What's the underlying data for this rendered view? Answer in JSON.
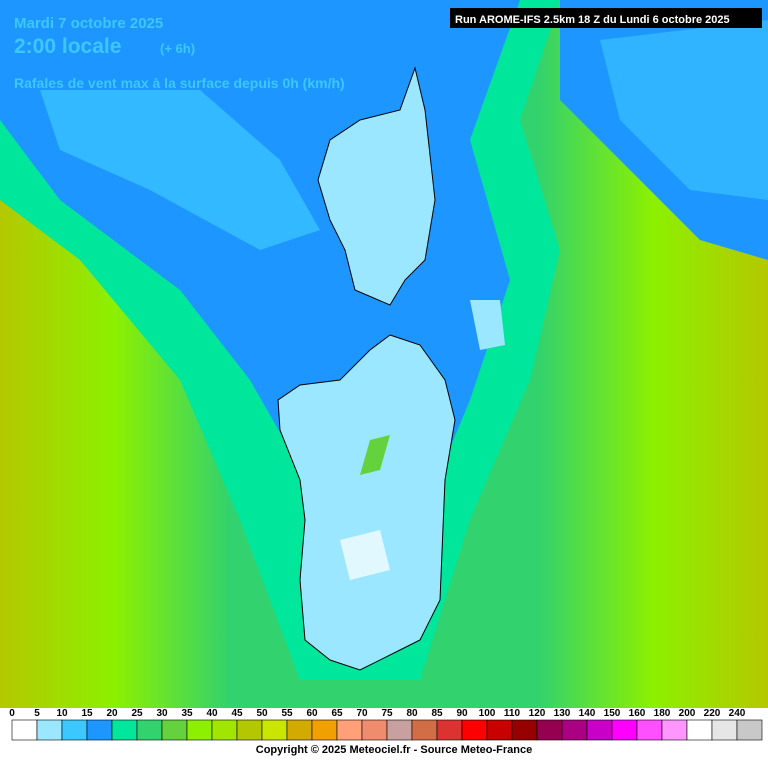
{
  "header": {
    "date": "Mardi 7 octobre 2025",
    "time": "2:00 locale",
    "offset": "(+ 6h)",
    "title": "Rafales de vent max à la surface depuis 0h (km/h)",
    "run": "Run AROME-IFS 2.5km 18 Z du Lundi 6 octobre 2025"
  },
  "legend": {
    "labels": [
      0,
      5,
      10,
      15,
      20,
      25,
      30,
      35,
      40,
      45,
      50,
      55,
      60,
      65,
      70,
      75,
      80,
      85,
      90,
      100,
      110,
      120,
      130,
      140,
      150,
      160,
      180,
      200,
      220,
      240
    ],
    "colors": [
      "#ffffff",
      "#9be7ff",
      "#3cc8ff",
      "#1e96ff",
      "#00e69b",
      "#32d26e",
      "#64d23c",
      "#8cf000",
      "#a0e600",
      "#b4c800",
      "#c8e600",
      "#d2aa00",
      "#f0a000",
      "#ffa078",
      "#f08c6e",
      "#c8a0a0",
      "#d26e46",
      "#dc3232",
      "#ff0000",
      "#c80000",
      "#960000",
      "#960050",
      "#aa0082",
      "#c800c8",
      "#ff00ff",
      "#ff50ff",
      "#ff96ff",
      "#ffffff",
      "#e6e6e6",
      "#c8c8c8"
    ]
  },
  "footer": {
    "copyright": "Copyright © 2025 Meteociel.fr - Source Meteo-France"
  }
}
